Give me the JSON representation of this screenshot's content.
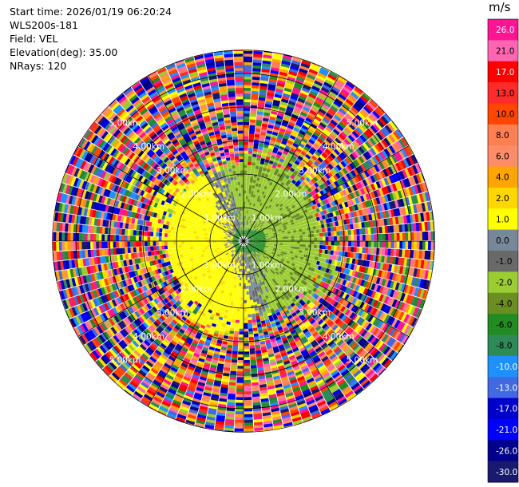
{
  "info": {
    "start_time": "Start time: 2026/01/19 06:20:24",
    "site": "WLS200s-181",
    "field": "Field: VEL",
    "elevation": "Elevation(deg): 35.00",
    "nrays": "NRays: 120"
  },
  "chart_data": {
    "type": "heatmap",
    "projection": "polar-ppi",
    "field": "VEL",
    "elevation_deg": 35.0,
    "n_rays": 120,
    "range_rings_km": [
      1.0,
      2.0,
      3.0,
      4.0,
      5.0
    ],
    "range_ring_labels": [
      "1.00km",
      "2.00km",
      "3.00km",
      "4.00km",
      "5.00km"
    ],
    "max_range_km": 5.7,
    "spokes_deg": [
      0,
      30,
      60,
      90,
      120,
      150,
      180,
      210,
      240,
      270,
      300,
      330
    ],
    "colorbar": {
      "unit": "m/s",
      "ticks": [
        "26.0",
        "21.0",
        "17.0",
        "13.0",
        "10.0",
        "8.0",
        "6.0",
        "4.0",
        "2.0",
        "1.0",
        "0.0",
        "-1.0",
        "-2.0",
        "-4.0",
        "-6.0",
        "-8.0",
        "-10.0",
        "-13.0",
        "-17.0",
        "-21.0",
        "-26.0",
        "-30.0"
      ],
      "colors": [
        "#ff1493",
        "#ff66b2",
        "#ff0000",
        "#ff2a2a",
        "#ff4500",
        "#ff7f50",
        "#ff8c69",
        "#ffa500",
        "#ffd700",
        "#ffff00",
        "#778899",
        "#696969",
        "#9acd32",
        "#6b8e23",
        "#228b22",
        "#2e8b57",
        "#1e90ff",
        "#4169e1",
        "#0000cd",
        "#0000ff",
        "#00008b",
        "#191970"
      ]
    }
  }
}
